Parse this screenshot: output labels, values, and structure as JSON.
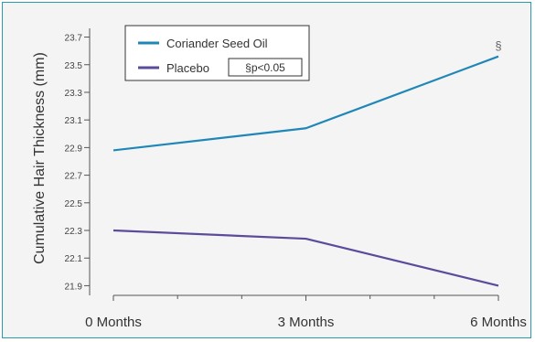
{
  "chart_data": {
    "type": "line",
    "categories": [
      "0 Months",
      "3 Months",
      "6 Months"
    ],
    "series": [
      {
        "name": "Coriander Seed Oil",
        "values": [
          22.88,
          23.04,
          23.56
        ],
        "color": "#1f87b8"
      },
      {
        "name": "Placebo",
        "values": [
          22.3,
          22.24,
          21.9
        ],
        "color": "#5c4a9a"
      }
    ],
    "ylabel": "Cumulative Hair Thickness (mm)",
    "ylim": [
      21.83,
      23.75
    ],
    "yticks": [
      "23.7",
      "23.5",
      "23.3",
      "23.1",
      "22.9",
      "22.7",
      "22.5",
      "22.3",
      "22.1",
      "21.9"
    ],
    "legend_position": "top-left",
    "significance_note": "§p<0.05",
    "annotation": {
      "text": "§",
      "series": "Coriander Seed Oil",
      "category": "6 Months"
    },
    "grid": false
  }
}
